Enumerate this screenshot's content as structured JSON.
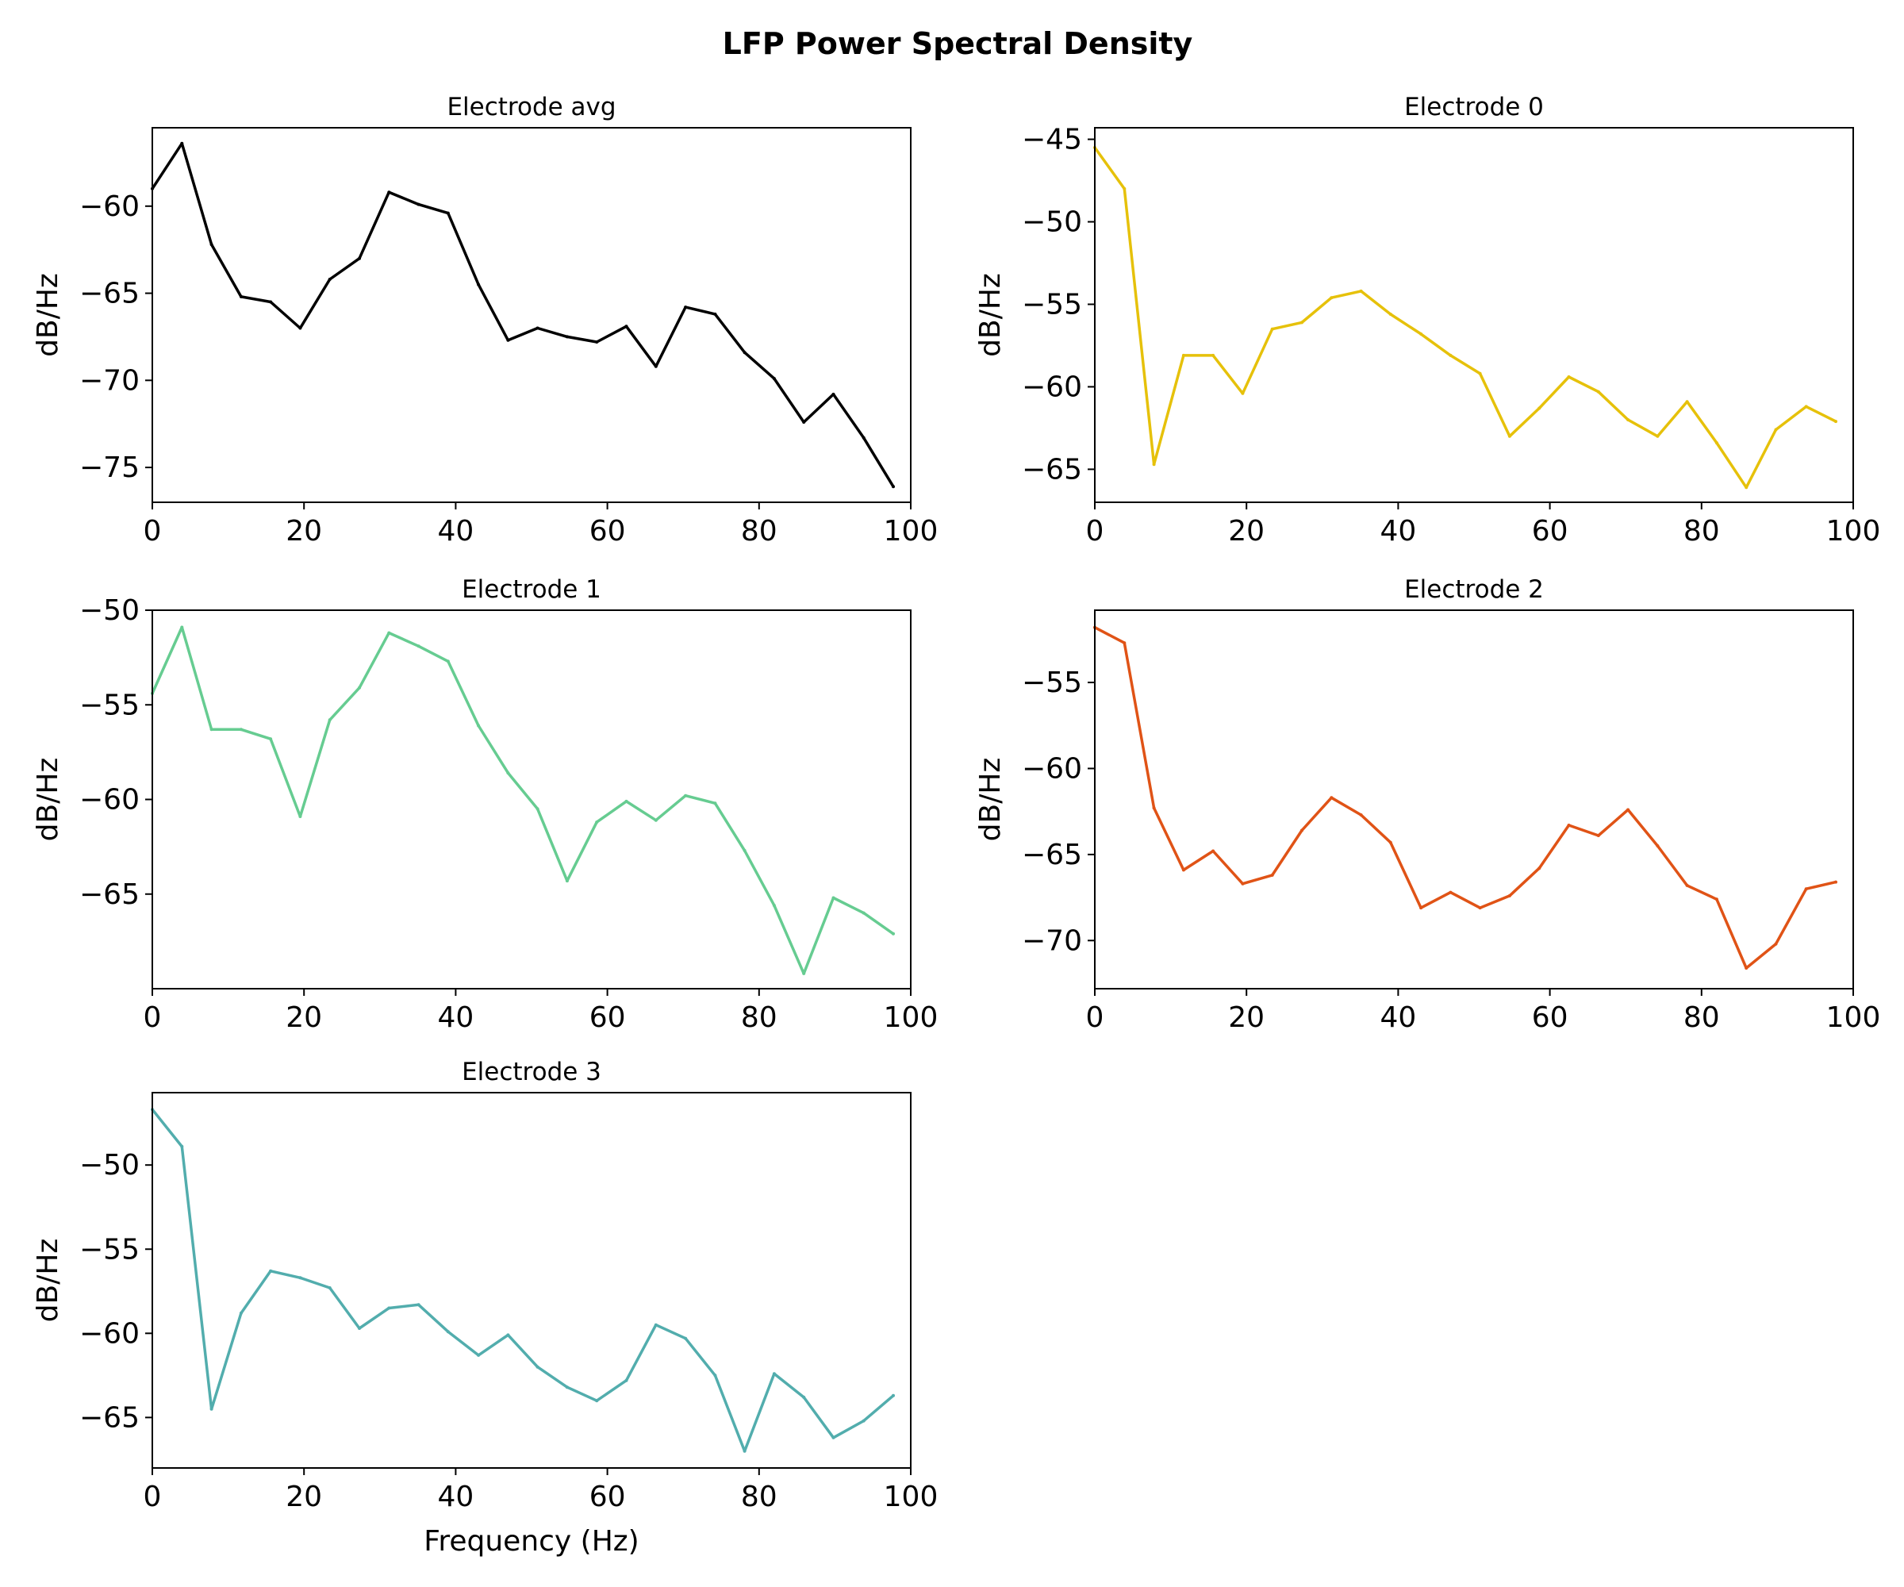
{
  "figure": {
    "title": "LFP Power Spectral Density"
  },
  "chart_data": [
    {
      "type": "line",
      "title": "Electrode avg",
      "xlabel": "",
      "ylabel": "dB/Hz",
      "xlim": [
        0,
        100
      ],
      "ylim": [
        -77.0,
        -55.5
      ],
      "xticks": [
        0,
        20,
        40,
        60,
        80,
        100
      ],
      "yticks": [
        -60,
        -65,
        -70,
        -75
      ],
      "color": "#000000",
      "x": [
        0,
        3.9,
        7.8,
        11.7,
        15.6,
        19.5,
        23.4,
        27.3,
        31.2,
        35.1,
        39.0,
        43.0,
        46.9,
        50.8,
        54.7,
        58.6,
        62.5,
        66.4,
        70.3,
        74.2,
        78.1,
        82.0,
        85.9,
        89.8,
        93.8,
        97.7
      ],
      "values": [
        -59.0,
        -56.4,
        -62.2,
        -65.2,
        -65.5,
        -67.0,
        -64.2,
        -63.0,
        -59.2,
        -59.9,
        -60.4,
        -64.5,
        -67.7,
        -67.0,
        -67.5,
        -67.8,
        -66.9,
        -69.2,
        -65.8,
        -66.2,
        -68.4,
        -69.9,
        -72.4,
        -70.8,
        -73.3,
        -76.1
      ]
    },
    {
      "type": "line",
      "title": "Electrode 0",
      "xlabel": "",
      "ylabel": "dB/Hz",
      "xlim": [
        0,
        100
      ],
      "ylim": [
        -67.0,
        -44.3
      ],
      "xticks": [
        0,
        20,
        40,
        60,
        80,
        100
      ],
      "yticks": [
        -45,
        -50,
        -55,
        -60,
        -65
      ],
      "color": "#e6c10a",
      "x": [
        0,
        3.9,
        7.8,
        11.7,
        15.6,
        19.5,
        23.4,
        27.3,
        31.2,
        35.1,
        39.0,
        43.0,
        46.9,
        50.8,
        54.7,
        58.6,
        62.5,
        66.4,
        70.3,
        74.2,
        78.1,
        82.0,
        85.9,
        89.8,
        93.8,
        97.7
      ],
      "values": [
        -45.5,
        -48.0,
        -64.7,
        -58.1,
        -58.1,
        -60.4,
        -56.5,
        -56.1,
        -54.6,
        -54.2,
        -55.6,
        -56.8,
        -58.1,
        -59.2,
        -63.0,
        -61.3,
        -59.4,
        -60.3,
        -62.0,
        -63.0,
        -60.9,
        -63.4,
        -66.1,
        -62.6,
        -61.2,
        -62.1
      ]
    },
    {
      "type": "line",
      "title": "Electrode 1",
      "xlabel": "",
      "ylabel": "dB/Hz",
      "xlim": [
        0,
        100
      ],
      "ylim": [
        -70.0,
        -50.0
      ],
      "xticks": [
        0,
        20,
        40,
        60,
        80,
        100
      ],
      "yticks": [
        -50,
        -55,
        -60,
        -65
      ],
      "color": "#66cc91",
      "x": [
        0,
        3.9,
        7.8,
        11.7,
        15.6,
        19.5,
        23.4,
        27.3,
        31.2,
        35.1,
        39.0,
        43.0,
        46.9,
        50.8,
        54.7,
        58.6,
        62.5,
        66.4,
        70.3,
        74.2,
        78.1,
        82.0,
        85.9,
        89.8,
        93.8,
        97.7
      ],
      "values": [
        -54.4,
        -50.9,
        -56.3,
        -56.3,
        -56.8,
        -60.9,
        -55.8,
        -54.1,
        -51.2,
        -51.9,
        -52.7,
        -56.1,
        -58.6,
        -60.5,
        -64.3,
        -61.2,
        -60.1,
        -61.1,
        -59.8,
        -60.2,
        -62.7,
        -65.6,
        -69.2,
        -65.2,
        -66.0,
        -67.1
      ]
    },
    {
      "type": "line",
      "title": "Electrode 2",
      "xlabel": "",
      "ylabel": "dB/Hz",
      "xlim": [
        0,
        100
      ],
      "ylim": [
        -72.8,
        -50.8
      ],
      "xticks": [
        0,
        20,
        40,
        60,
        80,
        100
      ],
      "yticks": [
        -55,
        -60,
        -65,
        -70
      ],
      "color": "#e05316",
      "x": [
        0,
        3.9,
        7.8,
        11.7,
        15.6,
        19.5,
        23.4,
        27.3,
        31.2,
        35.1,
        39.0,
        43.0,
        46.9,
        50.8,
        54.7,
        58.6,
        62.5,
        66.4,
        70.3,
        74.2,
        78.1,
        82.0,
        85.9,
        89.8,
        93.8,
        97.7
      ],
      "values": [
        -51.8,
        -52.7,
        -62.3,
        -65.9,
        -64.8,
        -66.7,
        -66.2,
        -63.6,
        -61.7,
        -62.7,
        -64.3,
        -68.1,
        -67.2,
        -68.1,
        -67.4,
        -65.8,
        -63.3,
        -63.9,
        -62.4,
        -64.5,
        -66.8,
        -67.6,
        -71.6,
        -70.2,
        -67.0,
        -66.6
      ]
    },
    {
      "type": "line",
      "title": "Electrode 3",
      "xlabel": "Frequency (Hz)",
      "ylabel": "dB/Hz",
      "xlim": [
        0,
        100
      ],
      "ylim": [
        -68.0,
        -45.7
      ],
      "xticks": [
        0,
        20,
        40,
        60,
        80,
        100
      ],
      "yticks": [
        -50,
        -55,
        -60,
        -65
      ],
      "color": "#52adad",
      "x": [
        0,
        3.9,
        7.8,
        11.7,
        15.6,
        19.5,
        23.4,
        27.3,
        31.2,
        35.1,
        39.0,
        43.0,
        46.9,
        50.8,
        54.7,
        58.6,
        62.5,
        66.4,
        70.3,
        74.2,
        78.1,
        82.0,
        85.9,
        89.8,
        93.8,
        97.7
      ],
      "values": [
        -46.7,
        -48.9,
        -64.5,
        -58.8,
        -56.3,
        -56.7,
        -57.3,
        -59.7,
        -58.5,
        -58.3,
        -59.9,
        -61.3,
        -60.1,
        -62.0,
        -63.2,
        -64.0,
        -62.8,
        -59.5,
        -60.3,
        -62.5,
        -67.0,
        -62.4,
        -63.8,
        -66.2,
        -65.2,
        -63.7
      ]
    }
  ]
}
